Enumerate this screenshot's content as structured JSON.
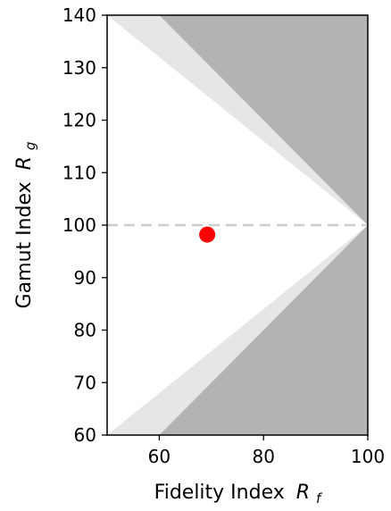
{
  "chart_data": {
    "type": "scatter",
    "xlabel": "Fidelity Index",
    "xlabel_symbol": "R",
    "xlabel_subscript": "f",
    "ylabel": "Gamut Index",
    "ylabel_symbol": "R",
    "ylabel_subscript": "g",
    "xlim": [
      50,
      100
    ],
    "ylim": [
      60,
      140
    ],
    "xticks": [
      60,
      80,
      100
    ],
    "yticks": [
      60,
      70,
      80,
      90,
      100,
      110,
      120,
      130,
      140
    ],
    "grid": false,
    "reference_line": {
      "y": 100,
      "style": "dashed",
      "color": "#cccccc"
    },
    "regions": [
      {
        "name": "outer-region",
        "color": "#b3b3b3",
        "upper_boundary": [
          [
            60,
            140
          ],
          [
            100,
            100
          ]
        ],
        "lower_boundary": [
          [
            60,
            60
          ],
          [
            100,
            100
          ]
        ]
      },
      {
        "name": "middle-region",
        "color": "#e6e6e6",
        "upper_boundary": [
          [
            50,
            140
          ],
          [
            100,
            100
          ]
        ],
        "lower_boundary": [
          [
            50,
            60
          ],
          [
            100,
            100
          ]
        ]
      }
    ],
    "points": [
      {
        "x": 69.2,
        "y": 98.2,
        "color": "#ff0000"
      }
    ]
  }
}
